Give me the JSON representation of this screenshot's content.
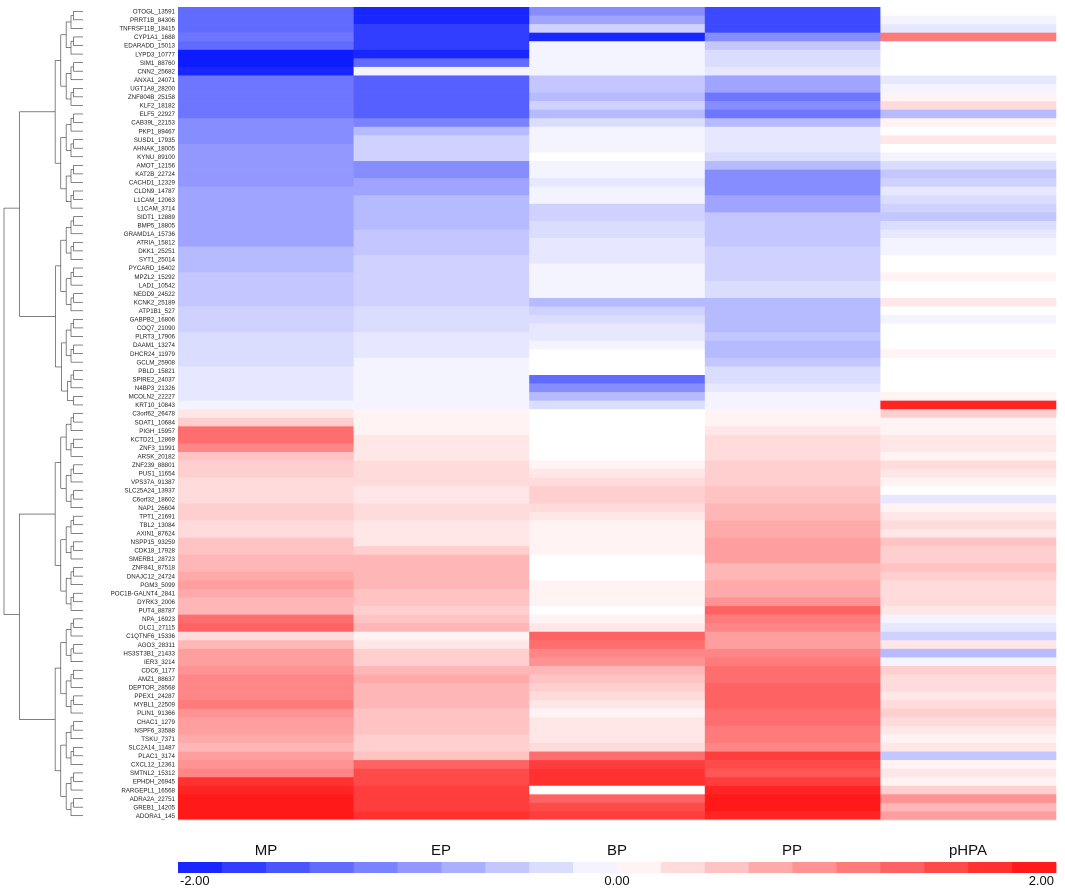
{
  "chart_data": {
    "type": "heatmap",
    "title": "",
    "columns": [
      "MP",
      "EP",
      "BP",
      "PP",
      "pHPA"
    ],
    "row_labels": [
      "OTOGL_13591",
      "PRRT1B_84306",
      "TNFRSF11B_18415",
      "CYP1A1_1688",
      "EDARADD_15013",
      "LYPD3_10777",
      "SIM1_88760",
      "CNN2_25682",
      "ANXA1_24071",
      "UGT1A8_28200",
      "ZNF804B_25158",
      "KLF2_18182",
      "ELF5_22927",
      "CAB39L_22153",
      "PKP1_89467",
      "SUSD1_17935",
      "AHNAK_18005",
      "KYNU_89100",
      "AMOT_12156",
      "KAT2B_22724",
      "CACHD1_12329",
      "CLDN9_14787",
      "L1CAM_12063",
      "L1CAM_3714",
      "SIDT1_12889",
      "BMP5_18805",
      "GRAMD1A_15736",
      "ATRIA_15812",
      "DKK1_25251",
      "SYT1_25014",
      "PYCARD_16402",
      "MPZL2_15292",
      "LAD1_10542",
      "NEDD9_24522",
      "KCNK2_25189",
      "ATP1B1_527",
      "GABPB2_16806",
      "COQ7_21090",
      "PLRT3_17906",
      "DAAM1_13274",
      "DHCR24_11979",
      "GCLM_25908",
      "PBLD_15821",
      "SPIRE2_24037",
      "N4BP3_21326",
      "MCOLN2_22227",
      "KRT10_10843",
      "C3orf62_26478",
      "SOAT1_10684",
      "PIGH_15957",
      "KCTD21_12869",
      "ZNF3_11991",
      "ARSK_20182",
      "ZNF239_88801",
      "PUS1_11654",
      "VPS37A_91387",
      "SLC25A24_13937",
      "C6orf32_18602",
      "NAP1_26604",
      "TPT1_21691",
      "TBL2_13084",
      "AXIN1_87624",
      "NSPP15_93259",
      "CDK18_17928",
      "SMERB1_28723",
      "ZNF841_87518",
      "DNAJC12_24724",
      "PGM3_5099",
      "POC1B-GALNT4_2841",
      "DYRK3_2006",
      "PUT4_88787",
      "NPA_16923",
      "DLC1_27115",
      "C1QTNF6_15336",
      "AGO3_28311",
      "HS3ST3B1_21433",
      "IER3_3214",
      "CDC6_1177",
      "AMZ1_88637",
      "DEPTOR_28568",
      "PPEX1_24287",
      "MYBL1_22509",
      "PLIN1_91366",
      "CHAC1_1279",
      "NSPF6_33588",
      "TSKU_7371",
      "SLC2A14_11487",
      "PLAC1_3174",
      "CXCL12_12361",
      "SMTNL2_15312",
      "EPHDH_26945",
      "RARGEPL1_16568",
      "ADRA2A_22751",
      "GREB1_14205",
      "ADORA1_145"
    ],
    "color_scale": {
      "min": -2.0,
      "mid": 0.0,
      "max": 2.0,
      "low_color": "#0d1bff",
      "mid_color": "#ffffff",
      "high_color": "#ff0d0d"
    },
    "tick_labels": [
      "-2.00",
      "0.00",
      "2.00"
    ],
    "values": [
      [
        -1.3,
        -1.9,
        -1.0,
        -1.6,
        0.0
      ],
      [
        -1.3,
        -1.9,
        -0.8,
        -1.6,
        -0.1
      ],
      [
        -1.3,
        -1.7,
        -0.4,
        -1.6,
        -0.2
      ],
      [
        -1.2,
        -1.7,
        -1.9,
        -1.0,
        1.1
      ],
      [
        -1.3,
        -1.7,
        -0.1,
        -0.5,
        0.0
      ],
      [
        -2.0,
        -1.9,
        -0.1,
        -0.3,
        0.0
      ],
      [
        -2.0,
        -1.3,
        -0.1,
        -0.3,
        0.0
      ],
      [
        -1.9,
        -0.1,
        -0.1,
        -0.2,
        0.0
      ],
      [
        -1.2,
        -1.4,
        -0.5,
        -0.8,
        -0.2
      ],
      [
        -1.2,
        -1.4,
        -0.5,
        -0.8,
        -0.1
      ],
      [
        -1.2,
        -1.4,
        -0.6,
        -1.2,
        0.1
      ],
      [
        -1.2,
        -1.4,
        -0.4,
        -1.0,
        0.3
      ],
      [
        -1.2,
        -1.4,
        -0.6,
        -1.2,
        -0.6
      ],
      [
        -1.0,
        -1.1,
        -0.3,
        -0.6,
        0.1
      ],
      [
        -1.0,
        -0.6,
        -0.1,
        -0.2,
        0.0
      ],
      [
        -1.0,
        -0.4,
        -0.1,
        -0.2,
        0.2
      ],
      [
        -0.9,
        -0.4,
        -0.1,
        -0.2,
        0.0
      ],
      [
        -0.9,
        -0.4,
        0.0,
        -0.3,
        -0.1
      ],
      [
        -0.9,
        -1.0,
        -0.1,
        -0.6,
        -0.3
      ],
      [
        -0.9,
        -1.0,
        -0.1,
        -1.0,
        -0.5
      ],
      [
        -0.9,
        -0.8,
        -0.2,
        -1.0,
        -0.4
      ],
      [
        -0.8,
        -0.8,
        -0.1,
        -1.0,
        -0.2
      ],
      [
        -0.8,
        -0.6,
        -0.1,
        -0.8,
        -0.3
      ],
      [
        -0.8,
        -0.6,
        -0.4,
        -0.8,
        -0.4
      ],
      [
        -0.8,
        -0.6,
        -0.4,
        -0.5,
        -0.5
      ],
      [
        -0.8,
        -0.6,
        -0.3,
        -0.5,
        -0.3
      ],
      [
        -0.8,
        -0.5,
        -0.3,
        -0.5,
        -0.2
      ],
      [
        -0.8,
        -0.5,
        -0.2,
        -0.5,
        -0.1
      ],
      [
        -0.6,
        -0.5,
        -0.2,
        -0.4,
        -0.1
      ],
      [
        -0.6,
        -0.4,
        -0.2,
        -0.4,
        0.0
      ],
      [
        -0.6,
        -0.4,
        -0.1,
        -0.4,
        0.0
      ],
      [
        -0.5,
        -0.4,
        -0.1,
        -0.4,
        0.1
      ],
      [
        -0.5,
        -0.4,
        -0.1,
        -0.3,
        0.0
      ],
      [
        -0.5,
        -0.4,
        -0.1,
        -0.3,
        0.0
      ],
      [
        -0.5,
        -0.4,
        -0.6,
        -0.6,
        0.2
      ],
      [
        -0.4,
        -0.3,
        -0.4,
        -0.6,
        0.0
      ],
      [
        -0.4,
        -0.3,
        -0.3,
        -0.6,
        -0.1
      ],
      [
        -0.4,
        -0.3,
        -0.2,
        -0.6,
        0.0
      ],
      [
        -0.3,
        -0.2,
        -0.2,
        -0.5,
        0.0
      ],
      [
        -0.3,
        -0.2,
        -0.1,
        -0.6,
        0.0
      ],
      [
        -0.3,
        -0.2,
        0.0,
        -0.6,
        0.1
      ],
      [
        -0.3,
        -0.1,
        0.0,
        -0.5,
        0.0
      ],
      [
        -0.2,
        -0.1,
        0.0,
        -0.3,
        0.0
      ],
      [
        -0.2,
        -0.1,
        -1.3,
        -0.3,
        0.0
      ],
      [
        -0.2,
        -0.1,
        -1.0,
        -0.2,
        0.0
      ],
      [
        -0.2,
        -0.1,
        -0.6,
        -0.1,
        0.1
      ],
      [
        -0.1,
        -0.1,
        -0.3,
        -0.1,
        1.8
      ],
      [
        0.2,
        0.1,
        0.0,
        0.1,
        0.4
      ],
      [
        0.4,
        0.1,
        0.0,
        0.1,
        0.1
      ],
      [
        1.2,
        0.1,
        0.0,
        0.2,
        0.1
      ],
      [
        1.2,
        0.2,
        0.0,
        0.3,
        0.2
      ],
      [
        1.0,
        0.2,
        0.0,
        0.3,
        0.2
      ],
      [
        0.5,
        0.2,
        0.0,
        0.3,
        0.1
      ],
      [
        0.4,
        0.3,
        0.1,
        0.4,
        0.3
      ],
      [
        0.4,
        0.3,
        0.2,
        0.4,
        0.2
      ],
      [
        0.3,
        0.3,
        0.3,
        0.4,
        0.1
      ],
      [
        0.3,
        0.2,
        0.4,
        0.5,
        0.0
      ],
      [
        0.3,
        0.2,
        0.4,
        0.5,
        -0.2
      ],
      [
        0.4,
        0.3,
        0.3,
        0.6,
        0.1
      ],
      [
        0.4,
        0.3,
        0.2,
        0.6,
        0.2
      ],
      [
        0.3,
        0.2,
        0.1,
        0.7,
        0.3
      ],
      [
        0.3,
        0.2,
        0.1,
        0.7,
        0.2
      ],
      [
        0.5,
        0.2,
        0.1,
        0.8,
        0.5
      ],
      [
        0.5,
        0.4,
        0.1,
        0.8,
        0.4
      ],
      [
        0.6,
        0.6,
        0.0,
        0.8,
        0.4
      ],
      [
        0.6,
        0.6,
        0.0,
        0.6,
        0.5
      ],
      [
        0.7,
        0.6,
        0.0,
        0.6,
        0.4
      ],
      [
        0.8,
        0.6,
        0.1,
        0.7,
        0.3
      ],
      [
        0.7,
        0.5,
        0.1,
        0.7,
        0.3
      ],
      [
        0.6,
        0.5,
        0.1,
        0.9,
        0.3
      ],
      [
        0.6,
        0.4,
        0.0,
        1.3,
        0.2
      ],
      [
        1.2,
        0.5,
        0.1,
        1.1,
        -0.1
      ],
      [
        1.3,
        0.6,
        0.2,
        1.0,
        -0.2
      ],
      [
        0.3,
        0.1,
        1.3,
        0.8,
        -0.4
      ],
      [
        0.6,
        0.2,
        1.2,
        0.8,
        0.2
      ],
      [
        0.8,
        0.4,
        1.0,
        1.0,
        -0.6
      ],
      [
        0.8,
        0.4,
        0.9,
        1.1,
        -0.1
      ],
      [
        0.9,
        0.6,
        0.6,
        1.2,
        0.4
      ],
      [
        1.0,
        0.7,
        0.5,
        1.2,
        0.3
      ],
      [
        1.0,
        0.6,
        0.4,
        1.3,
        0.3
      ],
      [
        1.0,
        0.6,
        0.3,
        1.3,
        0.2
      ],
      [
        1.1,
        0.6,
        0.2,
        1.3,
        0.3
      ],
      [
        0.9,
        0.5,
        0.1,
        1.2,
        0.4
      ],
      [
        0.8,
        0.5,
        0.2,
        1.2,
        0.3
      ],
      [
        0.8,
        0.5,
        0.2,
        1.1,
        0.2
      ],
      [
        0.7,
        0.4,
        0.2,
        1.1,
        0.1
      ],
      [
        0.6,
        0.4,
        0.3,
        1.0,
        0.2
      ],
      [
        0.8,
        0.5,
        1.2,
        1.6,
        -0.5
      ],
      [
        0.9,
        1.3,
        1.6,
        1.5,
        0.1
      ],
      [
        1.0,
        1.5,
        1.7,
        1.4,
        0.2
      ],
      [
        1.7,
        1.5,
        1.7,
        1.6,
        0.1
      ],
      [
        1.8,
        1.6,
        0.0,
        1.8,
        0.4
      ],
      [
        1.9,
        1.6,
        1.3,
        1.9,
        0.9
      ],
      [
        1.9,
        1.6,
        1.5,
        1.9,
        0.6
      ],
      [
        1.9,
        1.7,
        1.6,
        1.8,
        0.8
      ]
    ]
  }
}
